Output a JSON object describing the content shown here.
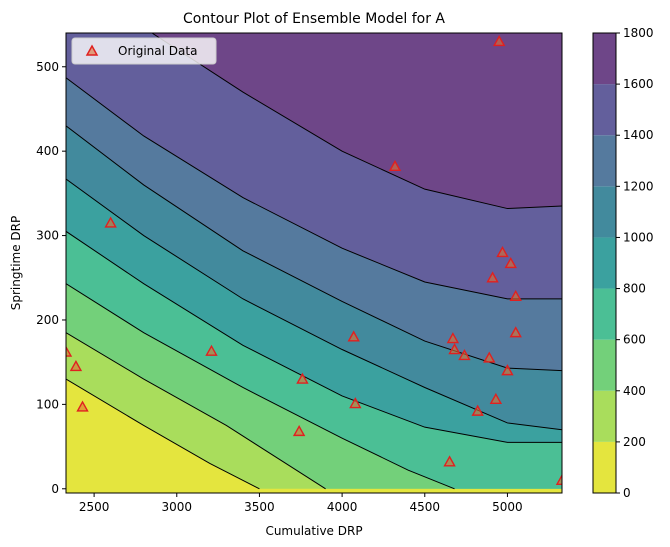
{
  "chart_data": {
    "type": "contour",
    "title": "Contour Plot of Ensemble Model for A",
    "xlabel": "Cumulative DRP",
    "ylabel": "Springtime DRP",
    "xlim": [
      2330,
      5330
    ],
    "ylim": [
      -5,
      540
    ],
    "xticks": [
      2500,
      3000,
      3500,
      4000,
      4500,
      5000
    ],
    "yticks": [
      0,
      100,
      200,
      300,
      400,
      500
    ],
    "model": {
      "description": "Filled contour levels of predicted A; boundaries approximate quadratic surface",
      "levels": [
        0,
        200,
        400,
        600,
        800,
        1000,
        1200,
        1400,
        1600,
        1800
      ],
      "boundary_curves": [
        {
          "level": 200,
          "points": [
            [
              2330,
              130
            ],
            [
              2800,
              75
            ],
            [
              3200,
              30
            ],
            [
              3500,
              0
            ]
          ]
        },
        {
          "level": 400,
          "points": [
            [
              2330,
              185
            ],
            [
              2800,
              130
            ],
            [
              3300,
              75
            ],
            [
              3700,
              25
            ],
            [
              3900,
              0
            ]
          ]
        },
        {
          "level": 600,
          "points": [
            [
              2330,
              243
            ],
            [
              2800,
              185
            ],
            [
              3400,
              120
            ],
            [
              4000,
              60
            ],
            [
              4400,
              22
            ],
            [
              4680,
              0
            ]
          ]
        },
        {
          "level": 800,
          "points": [
            [
              2330,
              305
            ],
            [
              2800,
              243
            ],
            [
              3400,
              170
            ],
            [
              4000,
              110
            ],
            [
              4500,
              73
            ],
            [
              5000,
              55
            ],
            [
              5330,
              55
            ]
          ]
        },
        {
          "level": 1000,
          "points": [
            [
              2330,
              367
            ],
            [
              2800,
              300
            ],
            [
              3400,
              225
            ],
            [
              4000,
              165
            ],
            [
              4500,
              120
            ],
            [
              5000,
              78
            ],
            [
              5330,
              70
            ]
          ]
        },
        {
          "level": 1200,
          "points": [
            [
              2330,
              430
            ],
            [
              2800,
              360
            ],
            [
              3400,
              282
            ],
            [
              4000,
              222
            ],
            [
              4500,
              175
            ],
            [
              5000,
              143
            ],
            [
              5330,
              140
            ]
          ]
        },
        {
          "level": 1400,
          "points": [
            [
              2330,
              487
            ],
            [
              2800,
              418
            ],
            [
              3400,
              345
            ],
            [
              4000,
              285
            ],
            [
              4500,
              245
            ],
            [
              5000,
              225
            ],
            [
              5330,
              225
            ]
          ]
        },
        {
          "level": 1600,
          "points": [
            [
              2850,
              540
            ],
            [
              3400,
              470
            ],
            [
              4000,
              400
            ],
            [
              4500,
              355
            ],
            [
              5000,
              332
            ],
            [
              5330,
              335
            ]
          ]
        }
      ],
      "colors": [
        "#e4e53e",
        "#a9dd5c",
        "#73d07a",
        "#4bbf95",
        "#3ba19f",
        "#428a9d",
        "#557a9e",
        "#635f9c",
        "#6e4688"
      ]
    },
    "colorbar": {
      "ticks": [
        0,
        200,
        400,
        600,
        800,
        1000,
        1200,
        1400,
        1600,
        1800
      ]
    },
    "series": [
      {
        "name": "Original Data",
        "marker": "triangle",
        "edge_color": "#e02020",
        "points": [
          [
            2330,
            162
          ],
          [
            2390,
            145
          ],
          [
            2430,
            97
          ],
          [
            2600,
            315
          ],
          [
            3210,
            163
          ],
          [
            3740,
            68
          ],
          [
            3760,
            130
          ],
          [
            4070,
            180
          ],
          [
            4080,
            101
          ],
          [
            4320,
            382
          ],
          [
            4650,
            32
          ],
          [
            4670,
            178
          ],
          [
            4680,
            165
          ],
          [
            4740,
            158
          ],
          [
            4820,
            92
          ],
          [
            4890,
            155
          ],
          [
            4910,
            250
          ],
          [
            4930,
            106
          ],
          [
            4970,
            280
          ],
          [
            5000,
            140
          ],
          [
            5020,
            267
          ],
          [
            5050,
            228
          ],
          [
            5050,
            185
          ],
          [
            4950,
            530
          ],
          [
            5330,
            10
          ]
        ]
      }
    ],
    "legend_position": "top-left"
  }
}
